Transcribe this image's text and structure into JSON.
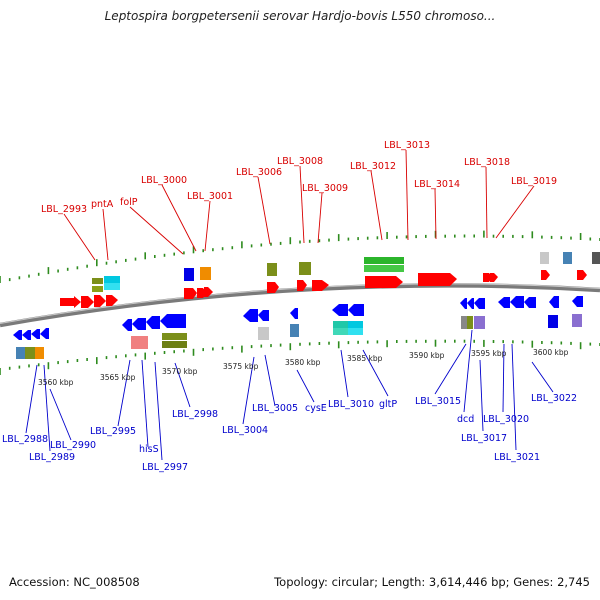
{
  "title": "Leptospira borgpetersenii serovar Hardjo-bovis L550 chromoso...",
  "footer": {
    "accession": "Accession: NC_008508",
    "topology": "Topology: circular; Length: 3,614,446 bp; Genes: 2,745"
  },
  "scale_ticks": [
    "3560 kbp",
    "3565 kbp",
    "3570 kbp",
    "3575 kbp",
    "3580 kbp",
    "3585 kbp",
    "3590 kbp",
    "3595 kbp",
    "3600 kbp"
  ],
  "top_labels": [
    "LBL_2993",
    "pntA",
    "folP",
    "LBL_3000",
    "LBL_3001",
    "LBL_3006",
    "LBL_3008",
    "LBL_3009",
    "LBL_3012",
    "LBL_3013",
    "LBL_3014",
    "LBL_3018",
    "LBL_3019"
  ],
  "bottom_labels": [
    "LBL_2988",
    "LBL_2989",
    "LBL_2990",
    "LBL_2995",
    "hisS",
    "LBL_2997",
    "LBL_2998",
    "LBL_3004",
    "LBL_3005",
    "cysE",
    "LBL_3010",
    "gltP",
    "LBL_3015",
    "dcd",
    "LBL_3017",
    "LBL_3020",
    "LBL_3021",
    "LBL_3022"
  ],
  "colors": {
    "forward_gene": "#ff0000",
    "reverse_gene": "#0000ff",
    "forward_label": "#d80000",
    "reverse_label": "#0000cc",
    "backbone": "#808080",
    "ticks": "#2e8b1e"
  }
}
